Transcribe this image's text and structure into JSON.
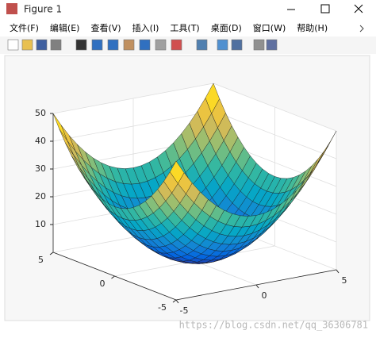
{
  "window": {
    "title": "Figure 1",
    "menu": [
      "文件(F)",
      "编辑(E)",
      "查看(V)",
      "插入(I)",
      "工具(T)",
      "桌面(D)",
      "窗口(W)",
      "帮助(H)"
    ]
  },
  "chart_data": {
    "type": "surface",
    "colormap": "parula",
    "grid": true,
    "x": [
      -5,
      -4.5,
      -4,
      -3.5,
      -3,
      -2.5,
      -2,
      -1.5,
      -1,
      -0.5,
      0,
      0.5,
      1,
      1.5,
      2,
      2.5,
      3,
      3.5,
      4,
      4.5,
      5
    ],
    "y": [
      -5,
      -4.5,
      -4,
      -3.5,
      -3,
      -2.5,
      -2,
      -1.5,
      -1,
      -0.5,
      0,
      0.5,
      1,
      1.5,
      2,
      2.5,
      3,
      3.5,
      4,
      4.5,
      5
    ],
    "z": [
      [
        50,
        45.25,
        41,
        37.25,
        34,
        31.25,
        29,
        27.25,
        26,
        25.25,
        25,
        25.25,
        26,
        27.25,
        29,
        31.25,
        34,
        37.25,
        41,
        45.25,
        50
      ],
      [
        45.25,
        40.5,
        36.25,
        32.5,
        29.25,
        26.5,
        24.25,
        22.5,
        21.25,
        20.5,
        20.25,
        20.5,
        21.25,
        22.5,
        24.25,
        26.5,
        29.25,
        32.5,
        36.25,
        40.5,
        45.25
      ],
      [
        41,
        36.25,
        32,
        28.25,
        25,
        22.25,
        20,
        18.25,
        17,
        16.25,
        16,
        16.25,
        17,
        18.25,
        20,
        22.25,
        25,
        28.25,
        32,
        36.25,
        41
      ],
      [
        37.25,
        32.5,
        28.25,
        24.5,
        21.25,
        18.5,
        16.25,
        14.5,
        13.25,
        12.5,
        12.25,
        12.5,
        13.25,
        14.5,
        16.25,
        18.5,
        21.25,
        24.5,
        28.25,
        32.5,
        37.25
      ],
      [
        34,
        29.25,
        25,
        21.25,
        18,
        15.25,
        13,
        11.25,
        10,
        9.25,
        9,
        9.25,
        10,
        11.25,
        13,
        15.25,
        18,
        21.25,
        25,
        29.25,
        34
      ],
      [
        31.25,
        26.5,
        22.25,
        18.5,
        15.25,
        12.5,
        10.25,
        8.5,
        7.25,
        6.5,
        6.25,
        6.5,
        7.25,
        8.5,
        10.25,
        12.5,
        15.25,
        18.5,
        22.25,
        26.5,
        31.25
      ],
      [
        29,
        24.25,
        20,
        16.25,
        13,
        10.25,
        8,
        6.25,
        5,
        4.25,
        4,
        4.25,
        5,
        6.25,
        8,
        10.25,
        13,
        16.25,
        20,
        24.25,
        29
      ],
      [
        27.25,
        22.5,
        18.25,
        14.5,
        11.25,
        8.5,
        6.25,
        4.5,
        3.25,
        2.5,
        2.25,
        2.5,
        3.25,
        4.5,
        6.25,
        8.5,
        11.25,
        14.5,
        18.25,
        22.5,
        27.25
      ],
      [
        26,
        21.25,
        17,
        13.25,
        10,
        7.25,
        5,
        3.25,
        2,
        1.25,
        1,
        1.25,
        2,
        3.25,
        5,
        7.25,
        10,
        13.25,
        17,
        21.25,
        26
      ],
      [
        25.25,
        20.5,
        16.25,
        12.5,
        9.25,
        6.5,
        4.25,
        2.5,
        1.25,
        0.5,
        0.25,
        0.5,
        1.25,
        2.5,
        4.25,
        6.5,
        9.25,
        12.5,
        16.25,
        20.5,
        25.25
      ],
      [
        25,
        20.25,
        16,
        12.25,
        9,
        6.25,
        4,
        2.25,
        1,
        0.25,
        0,
        0.25,
        1,
        2.25,
        4,
        6.25,
        9,
        12.25,
        16,
        20.25,
        25
      ],
      [
        25.25,
        20.5,
        16.25,
        12.5,
        9.25,
        6.5,
        4.25,
        2.5,
        1.25,
        0.5,
        0.25,
        0.5,
        1.25,
        2.5,
        4.25,
        6.5,
        9.25,
        12.5,
        16.25,
        20.5,
        25.25
      ],
      [
        26,
        21.25,
        17,
        13.25,
        10,
        7.25,
        5,
        3.25,
        2,
        1.25,
        1,
        1.25,
        2,
        3.25,
        5,
        7.25,
        10,
        13.25,
        17,
        21.25,
        26
      ],
      [
        27.25,
        22.5,
        18.25,
        14.5,
        11.25,
        8.5,
        6.25,
        4.5,
        3.25,
        2.5,
        2.25,
        2.5,
        3.25,
        4.5,
        6.25,
        8.5,
        11.25,
        14.5,
        18.25,
        22.5,
        27.25
      ],
      [
        29,
        24.25,
        20,
        16.25,
        13,
        10.25,
        8,
        6.25,
        5,
        4.25,
        4,
        4.25,
        5,
        6.25,
        8,
        10.25,
        13,
        16.25,
        20,
        24.25,
        29
      ],
      [
        31.25,
        26.5,
        22.25,
        18.5,
        15.25,
        12.5,
        10.25,
        8.5,
        7.25,
        6.5,
        6.25,
        6.5,
        7.25,
        8.5,
        10.25,
        12.5,
        15.25,
        18.5,
        22.25,
        26.5,
        31.25
      ],
      [
        34,
        29.25,
        25,
        21.25,
        18,
        15.25,
        13,
        11.25,
        10,
        9.25,
        9,
        9.25,
        10,
        11.25,
        13,
        15.25,
        18,
        21.25,
        25,
        29.25,
        34
      ],
      [
        37.25,
        32.5,
        28.25,
        24.5,
        21.25,
        18.5,
        16.25,
        14.5,
        13.25,
        12.5,
        12.25,
        12.5,
        13.25,
        14.5,
        16.25,
        18.5,
        21.25,
        24.5,
        28.25,
        32.5,
        37.25
      ],
      [
        41,
        36.25,
        32,
        28.25,
        25,
        22.25,
        20,
        18.25,
        17,
        16.25,
        16,
        16.25,
        17,
        18.25,
        20,
        22.25,
        25,
        28.25,
        32,
        36.25,
        41
      ],
      [
        45.25,
        40.5,
        36.25,
        32.5,
        29.25,
        26.5,
        24.25,
        22.5,
        21.25,
        20.5,
        20.25,
        20.5,
        21.25,
        22.5,
        24.25,
        26.5,
        29.25,
        32.5,
        36.25,
        40.5,
        45.25
      ],
      [
        50,
        45.25,
        41,
        37.25,
        34,
        31.25,
        29,
        27.25,
        26,
        25.25,
        25,
        25.25,
        26,
        27.25,
        29,
        31.25,
        34,
        37.25,
        41,
        45.25,
        50
      ]
    ],
    "xlim": [
      -5,
      5
    ],
    "ylim": [
      -5,
      5
    ],
    "zlim": [
      0,
      50
    ],
    "xticks": [
      -5,
      0,
      5
    ],
    "yticks": [
      -5,
      0,
      5
    ],
    "zticks": [
      10,
      20,
      30,
      40,
      50
    ]
  },
  "watermark": "https://blog.csdn.net/qq_36306781"
}
